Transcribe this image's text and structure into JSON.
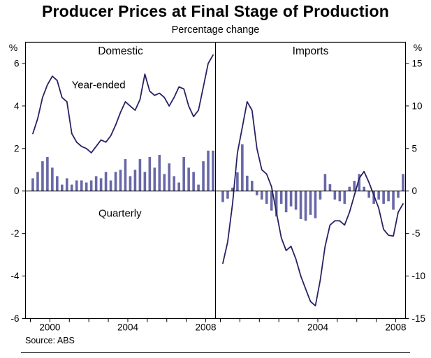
{
  "title": "Producer Prices at Final Stage of Production",
  "subtitle": "Percentage change",
  "source": "Source: ABS",
  "colors": {
    "line": "#262264",
    "bar": "#6868a8",
    "axis": "#000000"
  },
  "x_range": [
    1998.75,
    2008.5
  ],
  "chart_data": [
    {
      "type": "bar+line",
      "title": "Domestic",
      "axis_side": "left",
      "ylabel": "%",
      "ylim": [
        -6,
        7
      ],
      "yticks": [
        -6,
        -4,
        -2,
        0,
        2,
        4,
        6
      ],
      "xticks_labeled": [
        2000,
        2004,
        2008
      ],
      "x_start": 1999.125,
      "x_step": 0.25,
      "frequency": "quarterly",
      "series": [
        {
          "name": "Year-ended",
          "type": "line",
          "values": [
            2.7,
            3.4,
            4.4,
            5.0,
            5.4,
            5.2,
            4.4,
            4.2,
            2.7,
            2.3,
            2.1,
            2.0,
            1.8,
            2.1,
            2.4,
            2.3,
            2.6,
            3.1,
            3.7,
            4.2,
            4.0,
            3.8,
            4.3,
            5.5,
            4.7,
            4.5,
            4.6,
            4.4,
            4.0,
            4.4,
            4.9,
            4.8,
            4.0,
            3.5,
            3.8,
            4.9,
            6.0,
            6.4
          ]
        },
        {
          "name": "Quarterly",
          "type": "bar",
          "values": [
            0.6,
            0.9,
            1.4,
            1.6,
            1.1,
            0.7,
            0.3,
            0.6,
            0.3,
            0.5,
            0.5,
            0.4,
            0.5,
            0.7,
            0.6,
            0.9,
            0.5,
            0.9,
            1.0,
            1.5,
            0.7,
            1.0,
            1.5,
            0.9,
            1.6,
            1.1,
            1.7,
            0.8,
            1.3,
            0.7,
            0.4,
            1.6,
            1.1,
            0.9,
            0.3,
            1.4,
            1.9,
            1.9
          ]
        }
      ],
      "annotations": [
        {
          "text": "Year-ended",
          "x": 2002.5,
          "y": 5.0,
          "color": "line"
        },
        {
          "text": "Quarterly",
          "x": 2003.6,
          "y": -1.05,
          "color": "bar"
        }
      ]
    },
    {
      "type": "bar+line",
      "title": "Imports",
      "axis_side": "right",
      "ylabel": "%",
      "ylim": [
        -15,
        17.5
      ],
      "yticks": [
        -15,
        -10,
        -5,
        0,
        5,
        10,
        15
      ],
      "xticks_labeled": [
        2004,
        2008
      ],
      "x_start": 1999.125,
      "x_step": 0.25,
      "frequency": "quarterly",
      "series": [
        {
          "name": "Year-ended",
          "type": "line",
          "values": [
            -8.5,
            -6.0,
            -1.5,
            4.5,
            7.5,
            10.5,
            9.5,
            5.0,
            2.5,
            2.0,
            0.5,
            -2.5,
            -5.5,
            -7.0,
            -6.5,
            -8.0,
            -10.0,
            -11.5,
            -13.0,
            -13.5,
            -10.5,
            -6.5,
            -4.0,
            -3.5,
            -3.5,
            -4.0,
            -2.5,
            -0.5,
            1.5,
            2.3,
            1.0,
            -0.5,
            -2.0,
            -4.5,
            -5.2,
            -5.3,
            -2.5,
            -1.5
          ]
        },
        {
          "name": "Quarterly",
          "type": "bar",
          "values": [
            -1.3,
            -0.9,
            0.4,
            2.2,
            5.5,
            1.8,
            1.2,
            -0.5,
            -1.0,
            -1.5,
            -2.3,
            -3.0,
            -1.5,
            -2.5,
            -1.8,
            -2.2,
            -3.3,
            -3.5,
            -2.8,
            -3.2,
            -1.0,
            2.0,
            0.8,
            -1.0,
            -1.2,
            -1.5,
            0.5,
            1.2,
            2.0,
            0.5,
            -0.8,
            -1.5,
            -1.0,
            -1.5,
            -1.2,
            -2.2,
            -0.8,
            2.0
          ]
        }
      ],
      "annotations": []
    }
  ]
}
